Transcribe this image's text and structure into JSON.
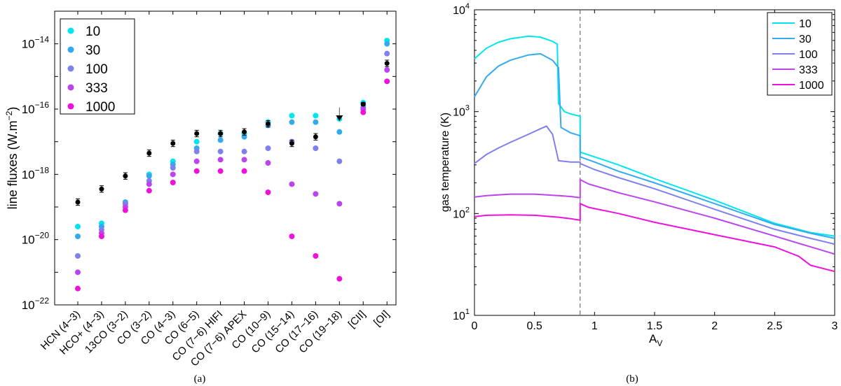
{
  "colors": {
    "s10": "#00e5ee",
    "s30": "#33aaee",
    "s100": "#7f7fee",
    "s333": "#bb44ee",
    "s1000": "#ee11dd",
    "obs": "#000000"
  },
  "chart_data": [
    {
      "type": "scatter",
      "panel_label": "(a)",
      "ylabel": "line fluxes (W.m",
      "ylabel_sup": "−2",
      "ylabel_close": ")",
      "yscale": "log",
      "ylim_exp": [
        -22,
        -13
      ],
      "y_tick_labels": [
        {
          "base": "10",
          "exp": "−22",
          "value": -22
        },
        {
          "base": "10",
          "exp": "−20",
          "value": -20
        },
        {
          "base": "10",
          "exp": "−18",
          "value": -18
        },
        {
          "base": "10",
          "exp": "−16",
          "value": -16
        },
        {
          "base": "10",
          "exp": "−14",
          "value": -14
        }
      ],
      "categories": [
        "HCN (4−3)",
        "HCO+ (4−3)",
        "13CO (3−2)",
        "CO (3−2)",
        "CO (4−3)",
        "CO (6−5)",
        "CO (7−6) HIFI",
        "CO (7−6) APEX",
        "CO (10−9)",
        "CO (15−14)",
        "CO (17−16)",
        "CO (19−18)",
        "[CII]",
        "[OI]"
      ],
      "legend": [
        "10",
        "30",
        "100",
        "333",
        "1000"
      ],
      "series": [
        {
          "name": "10",
          "log10_values": [
            -19.6,
            -19.5,
            -18.9,
            -18.0,
            -17.6,
            -17.0,
            -16.75,
            -16.75,
            -16.4,
            -16.2,
            -16.2,
            -16.3,
            -15.8,
            -13.9
          ]
        },
        {
          "name": "30",
          "log10_values": [
            -19.9,
            -19.6,
            -18.85,
            -18.05,
            -17.7,
            -17.2,
            -16.95,
            -16.85,
            -16.5,
            -16.4,
            -16.4,
            -16.7,
            -15.85,
            -14.0
          ]
        },
        {
          "name": "100",
          "log10_values": [
            -20.5,
            -19.7,
            -18.9,
            -18.2,
            -17.8,
            -17.3,
            -17.3,
            -17.3,
            -17.2,
            -17.0,
            -17.2,
            -17.6,
            -15.95,
            -14.3
          ]
        },
        {
          "name": "333",
          "log10_values": [
            -21.0,
            -19.8,
            -19.0,
            -18.3,
            -18.0,
            -17.6,
            -17.55,
            -17.55,
            -17.65,
            -18.3,
            -18.6,
            -18.9,
            -16.0,
            -14.8
          ]
        },
        {
          "name": "1000",
          "log10_values": [
            -21.5,
            -19.9,
            -19.1,
            -18.5,
            -18.25,
            -17.9,
            -17.9,
            -17.9,
            -18.55,
            -19.9,
            -20.5,
            -21.2,
            -16.1,
            -15.15
          ]
        }
      ],
      "observed": {
        "log10_values": [
          -18.85,
          -18.45,
          -18.05,
          -17.35,
          -17.05,
          -16.75,
          -16.75,
          -16.7,
          -16.45,
          -17.05,
          -16.85,
          -16.3,
          -15.85,
          -14.6
        ],
        "log10_error": [
          0.1,
          0.1,
          0.1,
          0.1,
          0.1,
          0.1,
          0.1,
          0.1,
          0.1,
          0.1,
          0.1,
          0.0,
          0.05,
          0.1
        ],
        "upper_limit_index": 11,
        "upper_limit_arrow_top": -15.95
      }
    },
    {
      "type": "line",
      "panel_label": "(b)",
      "xlabel": "A",
      "xlabel_sub": "V",
      "ylabel": "gas temperature (K)",
      "yscale": "log",
      "xlim": [
        0,
        3
      ],
      "ylim_exp": [
        1,
        4
      ],
      "x_ticks": [
        0,
        0.5,
        1,
        1.5,
        2,
        2.5,
        3
      ],
      "x_tick_labels": [
        "0",
        "0.5",
        "1",
        "1.5",
        "2",
        "2.5",
        "3"
      ],
      "y_tick_labels": [
        {
          "base": "10",
          "exp": "1",
          "value": 1
        },
        {
          "base": "10",
          "exp": "2",
          "value": 2
        },
        {
          "base": "10",
          "exp": "3",
          "value": 3
        },
        {
          "base": "10",
          "exp": "4",
          "value": 4
        }
      ],
      "vline_x": 0.88,
      "legend": [
        "10",
        "30",
        "100",
        "333",
        "1000"
      ],
      "series": [
        {
          "name": "10",
          "points": [
            [
              0,
              3300
            ],
            [
              0.1,
              4200
            ],
            [
              0.2,
              4800
            ],
            [
              0.3,
              5200
            ],
            [
              0.45,
              5500
            ],
            [
              0.55,
              5400
            ],
            [
              0.65,
              4900
            ],
            [
              0.69,
              4600
            ],
            [
              0.7,
              1200
            ],
            [
              0.75,
              1000
            ],
            [
              0.8,
              950
            ],
            [
              0.88,
              900
            ],
            [
              0.88,
              400
            ],
            [
              1.0,
              360
            ],
            [
              1.2,
              300
            ],
            [
              1.5,
              220
            ],
            [
              2.0,
              135
            ],
            [
              2.5,
              80
            ],
            [
              2.8,
              65
            ],
            [
              3.0,
              60
            ]
          ]
        },
        {
          "name": "30",
          "points": [
            [
              0,
              1400
            ],
            [
              0.1,
              2200
            ],
            [
              0.2,
              2800
            ],
            [
              0.3,
              3200
            ],
            [
              0.45,
              3600
            ],
            [
              0.55,
              3700
            ],
            [
              0.65,
              3200
            ],
            [
              0.7,
              2700
            ],
            [
              0.72,
              700
            ],
            [
              0.8,
              620
            ],
            [
              0.88,
              580
            ],
            [
              0.88,
              360
            ],
            [
              1.0,
              320
            ],
            [
              1.2,
              260
            ],
            [
              1.5,
              200
            ],
            [
              2.0,
              125
            ],
            [
              2.5,
              78
            ],
            [
              2.8,
              64
            ],
            [
              3.0,
              57
            ]
          ]
        },
        {
          "name": "100",
          "points": [
            [
              0,
              310
            ],
            [
              0.1,
              380
            ],
            [
              0.2,
              440
            ],
            [
              0.3,
              500
            ],
            [
              0.45,
              600
            ],
            [
              0.55,
              680
            ],
            [
              0.6,
              720
            ],
            [
              0.65,
              600
            ],
            [
              0.7,
              330
            ],
            [
              0.8,
              320
            ],
            [
              0.88,
              320
            ],
            [
              0.88,
              310
            ],
            [
              1.0,
              270
            ],
            [
              1.2,
              225
            ],
            [
              1.5,
              175
            ],
            [
              2.0,
              110
            ],
            [
              2.5,
              70
            ],
            [
              2.8,
              57
            ],
            [
              3.0,
              50
            ]
          ]
        },
        {
          "name": "333",
          "points": [
            [
              0,
              145
            ],
            [
              0.1,
              150
            ],
            [
              0.3,
              155
            ],
            [
              0.5,
              155
            ],
            [
              0.7,
              150
            ],
            [
              0.8,
              147
            ],
            [
              0.88,
              143
            ],
            [
              0.88,
              215
            ],
            [
              0.95,
              195
            ],
            [
              1.2,
              160
            ],
            [
              1.5,
              130
            ],
            [
              2.0,
              90
            ],
            [
              2.5,
              60
            ],
            [
              2.8,
              47
            ],
            [
              3.0,
              40
            ]
          ]
        },
        {
          "name": "1000",
          "points": [
            [
              0,
              93
            ],
            [
              0.1,
              96
            ],
            [
              0.3,
              97
            ],
            [
              0.5,
              96
            ],
            [
              0.7,
              92
            ],
            [
              0.8,
              89
            ],
            [
              0.88,
              86
            ],
            [
              0.88,
              125
            ],
            [
              0.95,
              115
            ],
            [
              1.2,
              100
            ],
            [
              1.5,
              82
            ],
            [
              2.0,
              62
            ],
            [
              2.5,
              47
            ],
            [
              2.7,
              38
            ],
            [
              2.8,
              31
            ],
            [
              3.0,
              27
            ]
          ]
        }
      ]
    }
  ]
}
